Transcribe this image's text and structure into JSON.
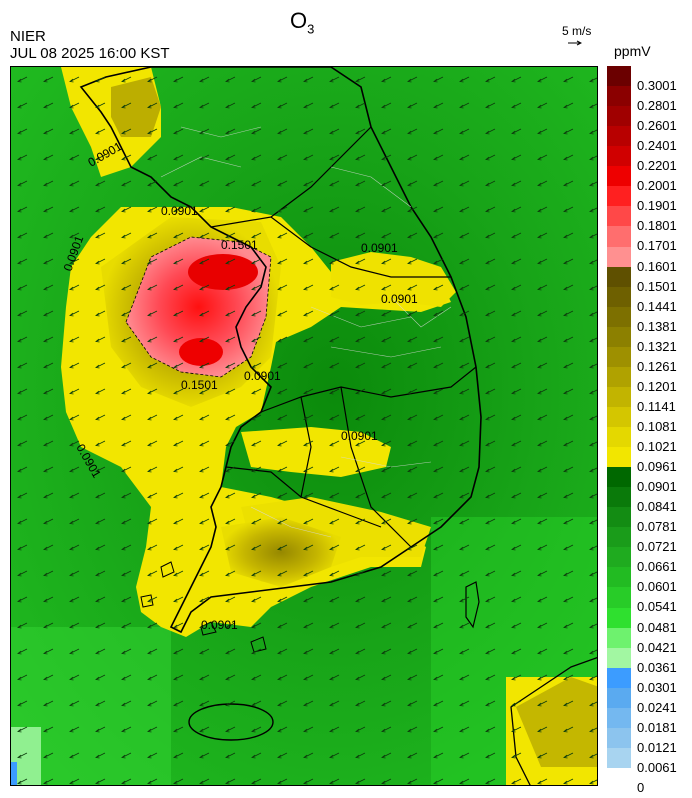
{
  "title": {
    "main": "O",
    "sub": "3"
  },
  "org": "NIER",
  "datetime": "JUL 08 2025 16:00 KST",
  "wind_scale": {
    "label": "5 m/s"
  },
  "unit": "ppmV",
  "contour_labels": [
    "0.0901",
    "0.1501"
  ],
  "legend": {
    "labels": [
      "0.3001",
      "0.2801",
      "0.2601",
      "0.2401",
      "0.2201",
      "0.2001",
      "0.1901",
      "0.1801",
      "0.1701",
      "0.1601",
      "0.1501",
      "0.1441",
      "0.1381",
      "0.1321",
      "0.1261",
      "0.1201",
      "0.1141",
      "0.1081",
      "0.1021",
      "0.0961",
      "0.0901",
      "0.0841",
      "0.0781",
      "0.0721",
      "0.0661",
      "0.0601",
      "0.0541",
      "0.0481",
      "0.0421",
      "0.0361",
      "0.0301",
      "0.0241",
      "0.0181",
      "0.0121",
      "0.0061",
      "0"
    ],
    "colors": [
      "#6b0000",
      "#8b0000",
      "#a00000",
      "#b80000",
      "#d00000",
      "#ee0000",
      "#ff2020",
      "#ff4848",
      "#ff6e6e",
      "#ff9090",
      "#5f5000",
      "#6e6000",
      "#7d7000",
      "#8c8000",
      "#9e9000",
      "#b0a200",
      "#c2b400",
      "#d4c600",
      "#e4d800",
      "#f2e600",
      "#006800",
      "#0a7a0a",
      "#138c13",
      "#1a9c1a",
      "#1fab1f",
      "#22bb22",
      "#28cc28",
      "#2fe02f",
      "#6ef26e",
      "#a2f7a2",
      "#3c9cff",
      "#5aaaf0",
      "#74b8f0",
      "#8cc4ee",
      "#a8d4f0"
    ]
  }
}
